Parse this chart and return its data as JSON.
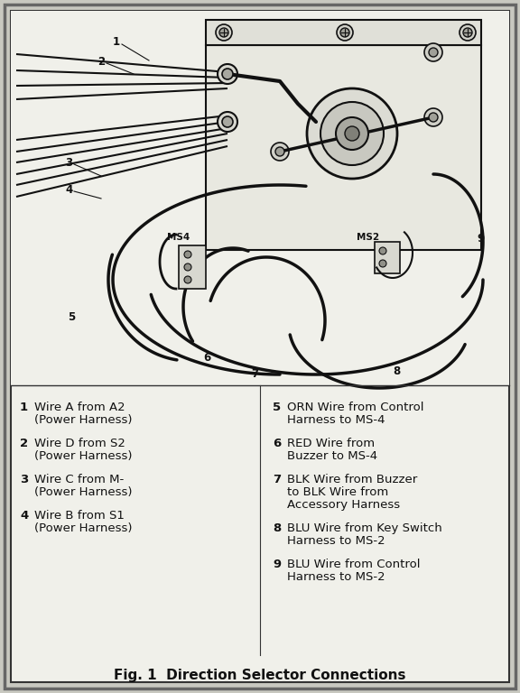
{
  "title": "Fig. 1  Direction Selector Connections",
  "outer_bg": "#c8c8c0",
  "inner_bg": "#f0f0ea",
  "diagram_bg": "#f0f0ea",
  "border_dark": "#333333",
  "border_med": "#666666",
  "line_color": "#111111",
  "legend_items_left": [
    [
      "1",
      "Wire A from A2",
      "(Power Harness)"
    ],
    [
      "2",
      "Wire D from S2",
      "(Power Harness)"
    ],
    [
      "3",
      "Wire C from M-",
      "(Power Harness)"
    ],
    [
      "4",
      "Wire B from S1",
      "(Power Harness)"
    ]
  ],
  "legend_items_right": [
    [
      "5",
      "ORN Wire from Control",
      "Harness to MS-4",
      ""
    ],
    [
      "6",
      "RED Wire from",
      "Buzzer to MS-4",
      ""
    ],
    [
      "7",
      "BLK Wire from Buzzer",
      "to BLK Wire from",
      "Accessory Harness"
    ],
    [
      "8",
      "BLU Wire from Key Switch",
      "Harness to MS-2",
      ""
    ],
    [
      "9",
      "BLU Wire from Control",
      "Harness to MS-2",
      ""
    ]
  ]
}
